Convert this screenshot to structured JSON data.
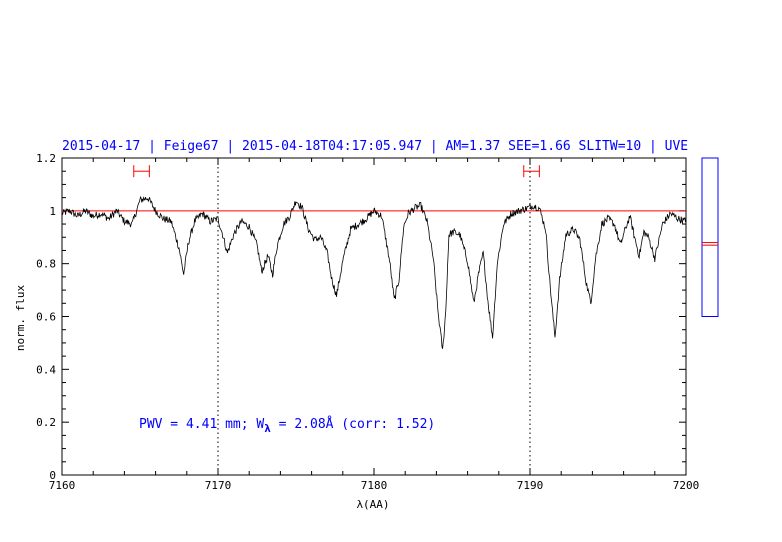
{
  "header": {
    "title": "2015-04-17 | Feige67 | 2015-04-18T04:17:05.947 | AM=1.37 SEE=1.66 SLITW=10 | UVE"
  },
  "annotation": {
    "pwv_prefix": "PWV = 4.41 mm; W",
    "pwv_sub": "λ",
    "pwv_suffix": " = 2.08Å (corr: 1.52)"
  },
  "colors": {
    "header": "#0000ff",
    "spectrum": "#000000",
    "continuum": "#ff0000",
    "range_markers": "#ff0000",
    "side_box": "#0000ff"
  },
  "chart_data": {
    "type": "line",
    "title": "",
    "xlabel": "λ(AA)",
    "ylabel": "norm. flux",
    "xlim": [
      7160,
      7200
    ],
    "ylim": [
      0,
      1.2
    ],
    "xticks": [
      "7160",
      "7170",
      "7180",
      "7190",
      "7200"
    ],
    "yticks": [
      "0",
      "0.2",
      "0.4",
      "0.6",
      "0.8",
      "1",
      "1.2"
    ],
    "continuum_level": 1.0,
    "reference_lines_x": [
      7170,
      7190
    ],
    "range_markers": [
      {
        "x_start": 7164.6,
        "x_end": 7165.6,
        "y": 1.15
      },
      {
        "x_start": 7189.6,
        "x_end": 7190.6,
        "y": 1.15
      }
    ],
    "side_indicator": {
      "ymin": 0.6,
      "ymax": 1.2,
      "marker_a": 0.88,
      "marker_b": 0.87
    },
    "series": [
      {
        "x": [
          7160.0,
          7160.5,
          7161.0,
          7161.5,
          7162.0,
          7162.5,
          7163.0,
          7163.5,
          7164.0,
          7164.5,
          7165.0,
          7165.5,
          7166.0,
          7166.5,
          7167.0,
          7167.5,
          7167.8,
          7168.1,
          7168.5,
          7169.0,
          7169.5,
          7170.0,
          7170.3,
          7170.6,
          7171.0,
          7171.5,
          7172.0,
          7172.5,
          7172.8,
          7173.2,
          7173.5,
          7173.8,
          7174.2,
          7174.6,
          7175.0,
          7175.4,
          7175.8,
          7176.2,
          7176.6,
          7177.0,
          7177.3,
          7177.6,
          7178.0,
          7178.5,
          7179.0,
          7179.5,
          7180.0,
          7180.5,
          7181.0,
          7181.3,
          7181.6,
          7181.9,
          7182.2,
          7182.6,
          7183.0,
          7183.4,
          7183.8,
          7184.1,
          7184.4,
          7184.6,
          7184.8,
          7185.1,
          7185.5,
          7186.0,
          7186.4,
          7186.7,
          7187.0,
          7187.3,
          7187.6,
          7187.9,
          7188.3,
          7188.8,
          7189.3,
          7189.8,
          7190.2,
          7190.6,
          7191.0,
          7191.3,
          7191.6,
          7191.9,
          7192.3,
          7192.8,
          7193.2,
          7193.6,
          7193.9,
          7194.2,
          7194.6,
          7195.0,
          7195.4,
          7195.8,
          7196.1,
          7196.4,
          7196.7,
          7197.0,
          7197.3,
          7197.6,
          7198.0,
          7198.5,
          7199.0,
          7199.5,
          7200.0
        ],
        "y": [
          0.99,
          1.0,
          0.98,
          1.0,
          0.98,
          0.99,
          0.97,
          1.0,
          0.96,
          0.95,
          1.04,
          1.05,
          1.0,
          0.97,
          0.96,
          0.86,
          0.76,
          0.88,
          0.96,
          0.99,
          0.96,
          0.97,
          0.91,
          0.84,
          0.91,
          0.96,
          0.94,
          0.87,
          0.77,
          0.83,
          0.76,
          0.87,
          0.95,
          0.98,
          1.04,
          1.01,
          0.93,
          0.89,
          0.9,
          0.84,
          0.74,
          0.68,
          0.81,
          0.93,
          0.95,
          0.97,
          1.0,
          0.98,
          0.81,
          0.66,
          0.74,
          0.94,
          0.99,
          1.01,
          1.02,
          0.96,
          0.82,
          0.62,
          0.47,
          0.62,
          0.91,
          0.92,
          0.91,
          0.81,
          0.65,
          0.76,
          0.84,
          0.66,
          0.52,
          0.8,
          0.95,
          0.99,
          1.0,
          1.01,
          1.02,
          1.01,
          0.93,
          0.71,
          0.52,
          0.74,
          0.91,
          0.93,
          0.89,
          0.73,
          0.65,
          0.82,
          0.95,
          0.97,
          0.95,
          0.87,
          0.93,
          0.98,
          0.9,
          0.83,
          0.92,
          0.9,
          0.82,
          0.95,
          0.99,
          0.97,
          0.96
        ]
      }
    ]
  }
}
